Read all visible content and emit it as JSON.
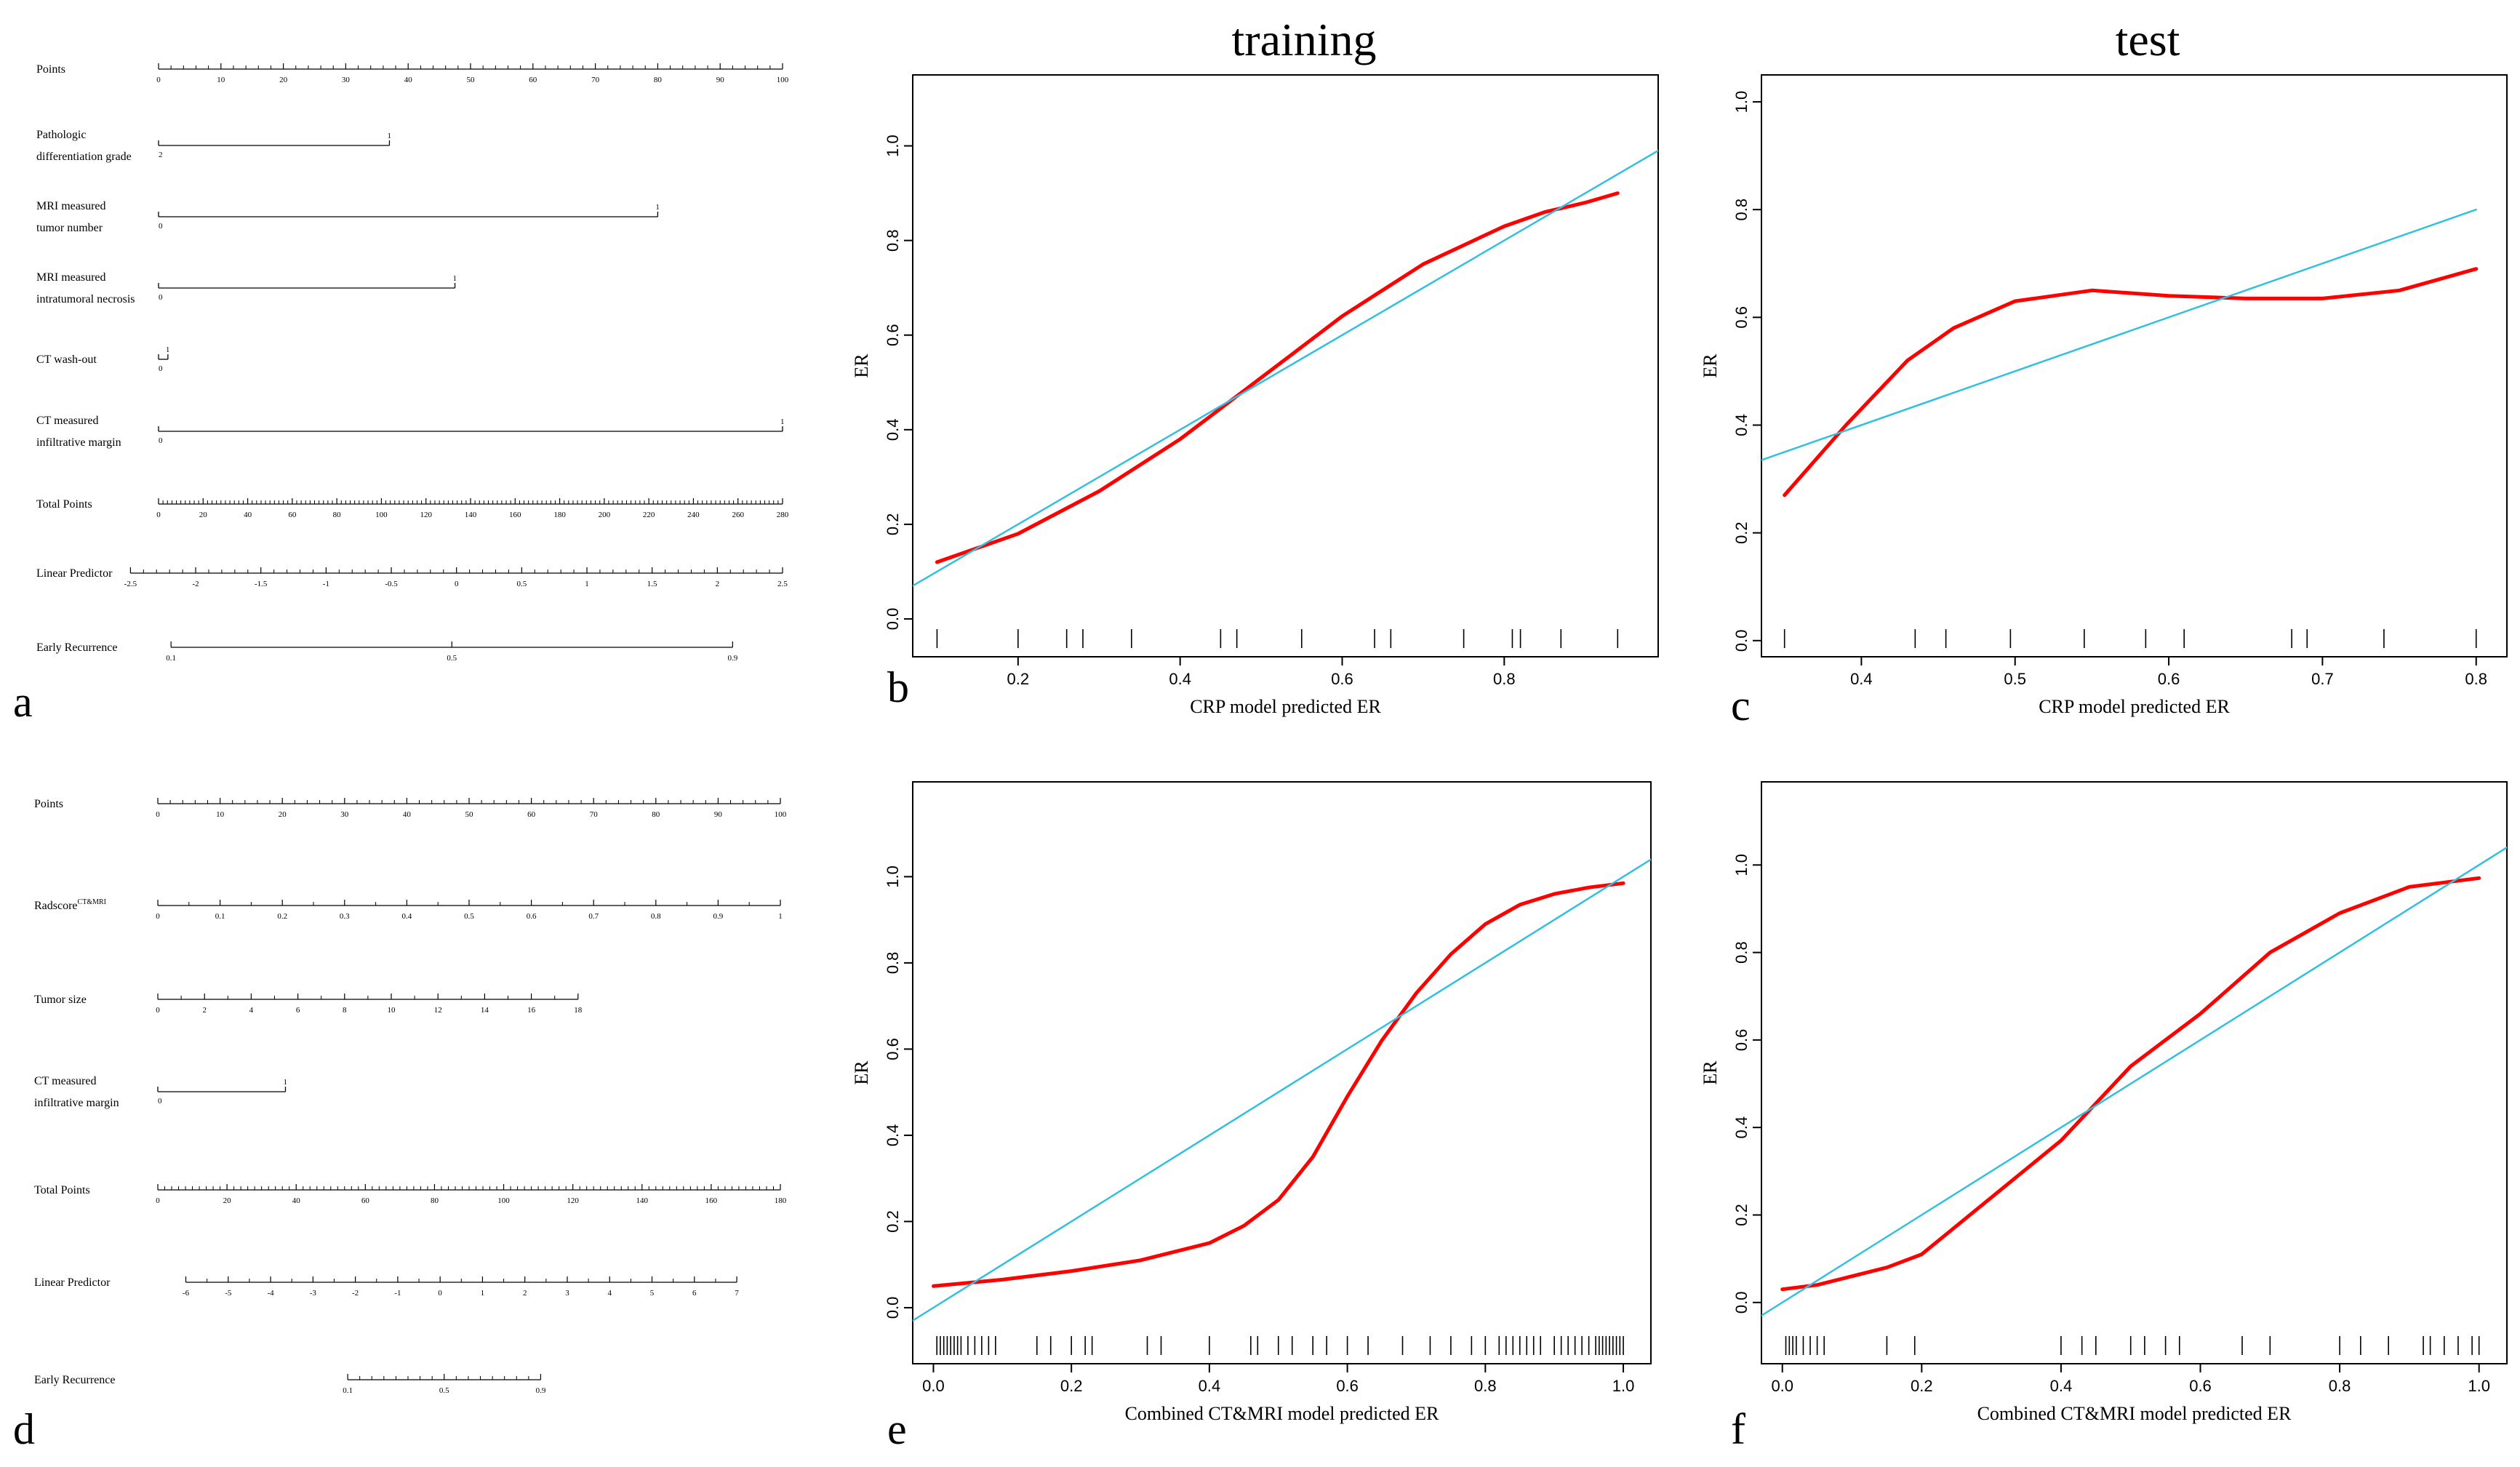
{
  "column_titles": {
    "training": "training",
    "test": "test"
  },
  "panel_letters": {
    "a": "a",
    "b": "b",
    "c": "c",
    "d": "d",
    "e": "e",
    "f": "f"
  },
  "colors": {
    "ideal": "#33bfe0",
    "calibration": "#ff0000",
    "axis": "#000000"
  },
  "chart_data": [
    {
      "panel": "a",
      "type": "nomogram",
      "rows": [
        {
          "label": [
            "Points"
          ],
          "kind": "scale",
          "ticks": [
            "0",
            "10",
            "20",
            "30",
            "40",
            "50",
            "60",
            "70",
            "80",
            "90",
            "100"
          ],
          "minor": 5
        },
        {
          "label": [
            "Pathologic",
            "differentiation grade"
          ],
          "kind": "binary",
          "end": 37,
          "ticks_below": [
            "2"
          ],
          "ticks_above": [
            "1"
          ]
        },
        {
          "label": [
            "MRI measured",
            "tumor number"
          ],
          "kind": "binary",
          "end": 80,
          "ticks_below": [
            "0"
          ],
          "ticks_above": [
            "1"
          ]
        },
        {
          "label": [
            "MRI measured",
            "intratumoral necrosis"
          ],
          "kind": "binary",
          "end": 47.5,
          "ticks_below": [
            "0"
          ],
          "ticks_above": [
            "1"
          ]
        },
        {
          "label": [
            "CT wash-out"
          ],
          "kind": "binary",
          "end": 1.5,
          "ticks_below": [
            "0"
          ],
          "ticks_above": [
            "1"
          ]
        },
        {
          "label": [
            "CT measured",
            "infiltrative margin"
          ],
          "kind": "binary",
          "end": 100,
          "ticks_below": [
            "0"
          ],
          "ticks_above": [
            "1"
          ]
        },
        {
          "label": [
            "Total Points"
          ],
          "kind": "scale",
          "ticks": [
            "0",
            "20",
            "40",
            "60",
            "80",
            "100",
            "120",
            "140",
            "160",
            "180",
            "200",
            "220",
            "240",
            "260",
            "280"
          ],
          "minor": 10
        },
        {
          "label": [
            "Linear Predictor"
          ],
          "kind": "scale",
          "ticks": [
            "-2.5",
            "-2",
            "-1.5",
            "-1",
            "-0.5",
            "0",
            "0.5",
            "1",
            "1.5",
            "2",
            "2.5"
          ],
          "minor": 5,
          "start": -4.5,
          "end": 100
        },
        {
          "label": [
            "Early Recurrence"
          ],
          "kind": "scale",
          "ticks": [
            "0.1",
            "0.5",
            "0.9"
          ],
          "minor": 0,
          "start": 2,
          "end": 92,
          "tick_pos": [
            2,
            47,
            92
          ]
        }
      ]
    },
    {
      "panel": "d",
      "type": "nomogram",
      "rows": [
        {
          "label": [
            "Points"
          ],
          "kind": "scale",
          "ticks": [
            "0",
            "10",
            "20",
            "30",
            "40",
            "50",
            "60",
            "70",
            "80",
            "90",
            "100"
          ],
          "minor": 5
        },
        {
          "label": [
            "Radscore",
            "CT&MRI"
          ],
          "kind": "superscript_scale",
          "ticks": [
            "0",
            "0.1",
            "0.2",
            "0.3",
            "0.4",
            "0.5",
            "0.6",
            "0.7",
            "0.8",
            "0.9",
            "1"
          ],
          "minor": 2
        },
        {
          "label": [
            "Tumor size"
          ],
          "kind": "scale",
          "ticks": [
            "0",
            "2",
            "4",
            "6",
            "8",
            "10",
            "12",
            "14",
            "16",
            "18"
          ],
          "minor": 2,
          "start": 0,
          "end": 67.5
        },
        {
          "label": [
            "CT measured",
            "infiltrative margin"
          ],
          "kind": "binary",
          "end": 20.5,
          "ticks_below": [
            "0"
          ],
          "ticks_above": [
            "1"
          ]
        },
        {
          "label": [
            "Total Points"
          ],
          "kind": "scale",
          "ticks": [
            "0",
            "20",
            "40",
            "60",
            "80",
            "100",
            "120",
            "140",
            "160",
            "180"
          ],
          "minor": 10
        },
        {
          "label": [
            "Linear Predictor"
          ],
          "kind": "scale",
          "ticks": [
            "-6",
            "-5",
            "-4",
            "-3",
            "-2",
            "-1",
            "0",
            "1",
            "2",
            "3",
            "4",
            "5",
            "6",
            "7"
          ],
          "minor": 2,
          "start": 4.5,
          "end": 93
        },
        {
          "label": [
            "Early Recurrence"
          ],
          "kind": "scale",
          "ticks": [
            "0.1",
            "0.5",
            "0.9"
          ],
          "minor": 8,
          "start": 30.5,
          "end": 61.5,
          "tick_pos": [
            30.5,
            46,
            61.5
          ]
        }
      ]
    },
    {
      "panel": "b",
      "type": "line",
      "title": "training",
      "xlabel": "CRP model predicted ER",
      "ylabel": "ER",
      "xlim": [
        0.07,
        0.99
      ],
      "ylim": [
        -0.08,
        1.15
      ],
      "xticks": [
        "0.2",
        "0.4",
        "0.6",
        "0.8"
      ],
      "yticks": [
        "0.0",
        "0.2",
        "0.4",
        "0.6",
        "0.8",
        "1.0"
      ],
      "series": [
        {
          "name": "calibration",
          "x": [
            0.1,
            0.2,
            0.3,
            0.4,
            0.5,
            0.6,
            0.7,
            0.75,
            0.8,
            0.85,
            0.9,
            0.94
          ],
          "y": [
            0.12,
            0.18,
            0.27,
            0.38,
            0.51,
            0.64,
            0.75,
            0.79,
            0.83,
            0.86,
            0.88,
            0.9
          ]
        },
        {
          "name": "ideal",
          "x": [
            0.07,
            0.99
          ],
          "y": [
            0.07,
            0.99
          ]
        }
      ],
      "rug": [
        0.1,
        0.2,
        0.26,
        0.28,
        0.34,
        0.45,
        0.47,
        0.55,
        0.64,
        0.66,
        0.75,
        0.81,
        0.82,
        0.87,
        0.94
      ]
    },
    {
      "panel": "c",
      "type": "line",
      "title": "test",
      "xlabel": "CRP model predicted ER",
      "ylabel": "ER",
      "xlim": [
        0.335,
        0.82
      ],
      "ylim": [
        -0.03,
        1.05
      ],
      "xticks": [
        "0.4",
        "0.5",
        "0.6",
        "0.7",
        "0.8"
      ],
      "yticks": [
        "0.0",
        "0.2",
        "0.4",
        "0.6",
        "0.8",
        "1.0"
      ],
      "series": [
        {
          "name": "calibration",
          "x": [
            0.35,
            0.39,
            0.43,
            0.46,
            0.5,
            0.55,
            0.6,
            0.65,
            0.7,
            0.75,
            0.8
          ],
          "y": [
            0.27,
            0.4,
            0.52,
            0.58,
            0.63,
            0.65,
            0.64,
            0.635,
            0.635,
            0.65,
            0.69
          ]
        },
        {
          "name": "ideal",
          "x": [
            0.335,
            0.8
          ],
          "y": [
            0.335,
            0.8
          ]
        }
      ],
      "rug": [
        0.35,
        0.435,
        0.455,
        0.497,
        0.545,
        0.585,
        0.61,
        0.68,
        0.69,
        0.74,
        0.8
      ]
    },
    {
      "panel": "e",
      "type": "line",
      "xlabel": "Combined CT&MRI model predicted ER",
      "ylabel": "ER",
      "xlim": [
        -0.03,
        1.04
      ],
      "ylim": [
        -0.13,
        1.22
      ],
      "xticks": [
        "0.0",
        "0.2",
        "0.4",
        "0.6",
        "0.8",
        "1.0"
      ],
      "yticks": [
        "0.0",
        "0.2",
        "0.4",
        "0.6",
        "0.8",
        "1.0"
      ],
      "series": [
        {
          "name": "calibration",
          "x": [
            0.0,
            0.1,
            0.2,
            0.3,
            0.4,
            0.45,
            0.5,
            0.55,
            0.6,
            0.65,
            0.7,
            0.75,
            0.8,
            0.85,
            0.9,
            0.95,
            1.0
          ],
          "y": [
            0.05,
            0.065,
            0.085,
            0.11,
            0.15,
            0.19,
            0.25,
            0.35,
            0.49,
            0.62,
            0.73,
            0.82,
            0.89,
            0.935,
            0.96,
            0.975,
            0.985
          ]
        },
        {
          "name": "ideal",
          "x": [
            -0.03,
            1.04
          ],
          "y": [
            -0.03,
            1.04
          ]
        }
      ],
      "rug": [
        0.005,
        0.01,
        0.015,
        0.02,
        0.025,
        0.03,
        0.035,
        0.04,
        0.05,
        0.06,
        0.07,
        0.08,
        0.09,
        0.15,
        0.17,
        0.2,
        0.22,
        0.23,
        0.31,
        0.33,
        0.4,
        0.46,
        0.47,
        0.5,
        0.52,
        0.55,
        0.57,
        0.6,
        0.63,
        0.68,
        0.72,
        0.75,
        0.78,
        0.8,
        0.82,
        0.83,
        0.84,
        0.85,
        0.86,
        0.87,
        0.88,
        0.9,
        0.91,
        0.92,
        0.93,
        0.94,
        0.95,
        0.96,
        0.965,
        0.97,
        0.975,
        0.98,
        0.985,
        0.99,
        0.995,
        1.0
      ]
    },
    {
      "panel": "f",
      "type": "line",
      "xlabel": "Combined CT&MRI model predicted ER",
      "ylabel": "ER",
      "xlim": [
        -0.03,
        1.04
      ],
      "ylim": [
        -0.14,
        1.19
      ],
      "xticks": [
        "0.0",
        "0.2",
        "0.4",
        "0.6",
        "0.8",
        "1.0"
      ],
      "yticks": [
        "0.0",
        "0.2",
        "0.4",
        "0.6",
        "0.8",
        "1.0"
      ],
      "series": [
        {
          "name": "calibration",
          "x": [
            0.0,
            0.05,
            0.1,
            0.15,
            0.2,
            0.3,
            0.4,
            0.5,
            0.6,
            0.7,
            0.8,
            0.9,
            1.0
          ],
          "y": [
            0.03,
            0.04,
            0.06,
            0.08,
            0.11,
            0.24,
            0.37,
            0.54,
            0.66,
            0.8,
            0.89,
            0.95,
            0.97
          ]
        },
        {
          "name": "ideal",
          "x": [
            -0.03,
            1.04
          ],
          "y": [
            -0.03,
            1.04
          ]
        }
      ],
      "rug": [
        0.005,
        0.01,
        0.015,
        0.02,
        0.03,
        0.04,
        0.05,
        0.06,
        0.15,
        0.19,
        0.4,
        0.43,
        0.45,
        0.5,
        0.52,
        0.55,
        0.57,
        0.66,
        0.7,
        0.8,
        0.83,
        0.87,
        0.92,
        0.93,
        0.95,
        0.97,
        0.99,
        1.0
      ]
    }
  ]
}
